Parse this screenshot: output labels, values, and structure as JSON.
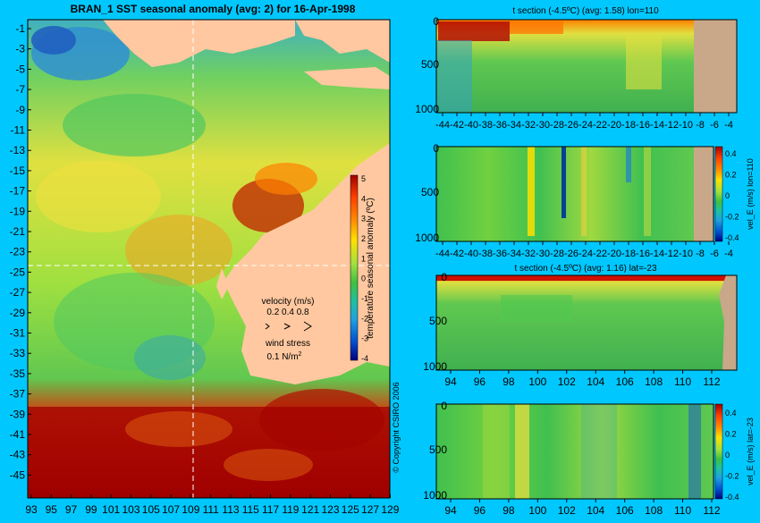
{
  "main_map": {
    "title": "BRAN_1  SST seasonal anomaly  (avg: 2)  for 16-Apr-1998",
    "lat_ticks": [
      "-1",
      "-3",
      "-5",
      "-7",
      "-9",
      "-11",
      "-13",
      "-15",
      "-17",
      "-19",
      "-21",
      "-23",
      "-25",
      "-27",
      "-29",
      "-31",
      "-33",
      "-35",
      "-37",
      "-39",
      "-41",
      "-43",
      "-45"
    ],
    "lon_ticks": [
      "93",
      "95",
      "97",
      "99",
      "101",
      "103",
      "105",
      "107",
      "109",
      "111",
      "113",
      "115",
      "117",
      "119",
      "121",
      "123",
      "125",
      "127",
      "129"
    ],
    "colorbar": {
      "label": "temperature seasonal anomaly (ºC)",
      "ticks": [
        "5",
        "4",
        "3",
        "2",
        "1",
        "0",
        "-1",
        "-2",
        "-3",
        "-4"
      ]
    },
    "velocity_legend": {
      "title": "velocity (m/s)",
      "values": "0.2 0.4 0.8"
    },
    "wind_legend": {
      "title": "wind stress",
      "value": "0.1 N/m",
      "sup": "2"
    },
    "copyright": "© Copyright CSIRO 2006"
  },
  "colors": {
    "background": "#00c8ff",
    "land": "#ffc8a0",
    "section_land": "#c8a888",
    "anomaly_warm": "#a00000",
    "anomaly_neutral": "#40c040",
    "anomaly_cold": "#0040c0"
  },
  "chart_data": [
    {
      "type": "heatmap",
      "title": "t section (-4.5ºC)  (avg: 1.58)  lon=110",
      "x_ticks": [
        "-44",
        "-42",
        "-40",
        "-38",
        "-36",
        "-34",
        "-32",
        "-30",
        "-28",
        "-26",
        "-24",
        "-22",
        "-20",
        "-18",
        "-16",
        "-14",
        "-12",
        "-10",
        "-8",
        "-6",
        "-4"
      ],
      "y_ticks": [
        "0",
        "500",
        "1000"
      ],
      "colorbar": null
    },
    {
      "type": "heatmap",
      "title": "",
      "x_ticks": [
        "-44",
        "-42",
        "-40",
        "-38",
        "-36",
        "-34",
        "-32",
        "-30",
        "-28",
        "-26",
        "-24",
        "-22",
        "-20",
        "-18",
        "-16",
        "-14",
        "-12",
        "-10",
        "-8",
        "-6",
        "-4"
      ],
      "y_ticks": [
        "0",
        "500",
        "1000"
      ],
      "colorbar": {
        "label": "vel_E (m/s) lon=110",
        "ticks": [
          "0.4",
          "0.2",
          "0",
          "-0.2",
          "-0.4"
        ]
      }
    },
    {
      "type": "heatmap",
      "title": "t section (-4.5ºC)  (avg: 1.16)  lat=-23",
      "x_ticks": [
        "94",
        "96",
        "98",
        "100",
        "102",
        "104",
        "106",
        "108",
        "110",
        "112"
      ],
      "y_ticks": [
        "0",
        "500",
        "1000"
      ],
      "colorbar": null
    },
    {
      "type": "heatmap",
      "title": "",
      "x_ticks": [
        "94",
        "96",
        "98",
        "100",
        "102",
        "104",
        "106",
        "108",
        "110",
        "112"
      ],
      "y_ticks": [
        "0",
        "500",
        "1000"
      ],
      "colorbar": {
        "label": "vel_E (m/s) lat=-23",
        "ticks": [
          "0.4",
          "0.2",
          "0",
          "-0.2",
          "-0.4"
        ]
      }
    }
  ]
}
